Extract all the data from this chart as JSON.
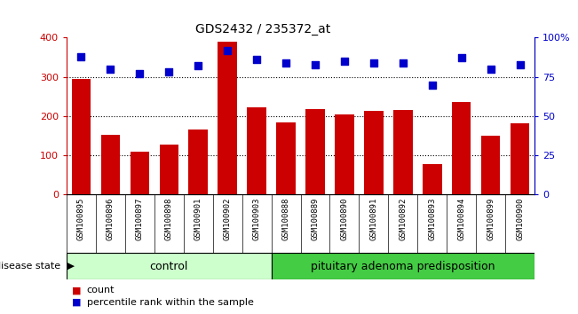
{
  "title": "GDS2432 / 235372_at",
  "samples": [
    "GSM100895",
    "GSM100896",
    "GSM100897",
    "GSM100898",
    "GSM100901",
    "GSM100902",
    "GSM100903",
    "GSM100888",
    "GSM100889",
    "GSM100890",
    "GSM100891",
    "GSM100892",
    "GSM100893",
    "GSM100894",
    "GSM100899",
    "GSM100900"
  ],
  "bar_values": [
    295,
    152,
    110,
    127,
    165,
    390,
    222,
    185,
    218,
    205,
    213,
    215,
    78,
    237,
    150,
    182
  ],
  "dot_values": [
    88,
    80,
    77,
    78,
    82,
    92,
    86,
    84,
    83,
    85,
    84,
    84,
    70,
    87,
    80,
    83
  ],
  "bar_color": "#cc0000",
  "dot_color": "#0000cc",
  "ylim_left": [
    0,
    400
  ],
  "ylim_right": [
    0,
    100
  ],
  "yticks_left": [
    0,
    100,
    200,
    300,
    400
  ],
  "yticks_right": [
    0,
    25,
    50,
    75,
    100
  ],
  "yticklabels_right": [
    "0",
    "25",
    "50",
    "75",
    "100%"
  ],
  "grid_values": [
    100,
    200,
    300
  ],
  "control_count": 7,
  "control_label": "control",
  "disease_label": "pituitary adenoma predisposition",
  "disease_state_label": "disease state",
  "legend_bar_label": "count",
  "legend_dot_label": "percentile rank within the sample",
  "control_color": "#ccffcc",
  "disease_color": "#44cc44",
  "label_color_left": "#cc0000",
  "label_color_right": "#0000cc",
  "xtick_bg_color": "#d8d8d8"
}
